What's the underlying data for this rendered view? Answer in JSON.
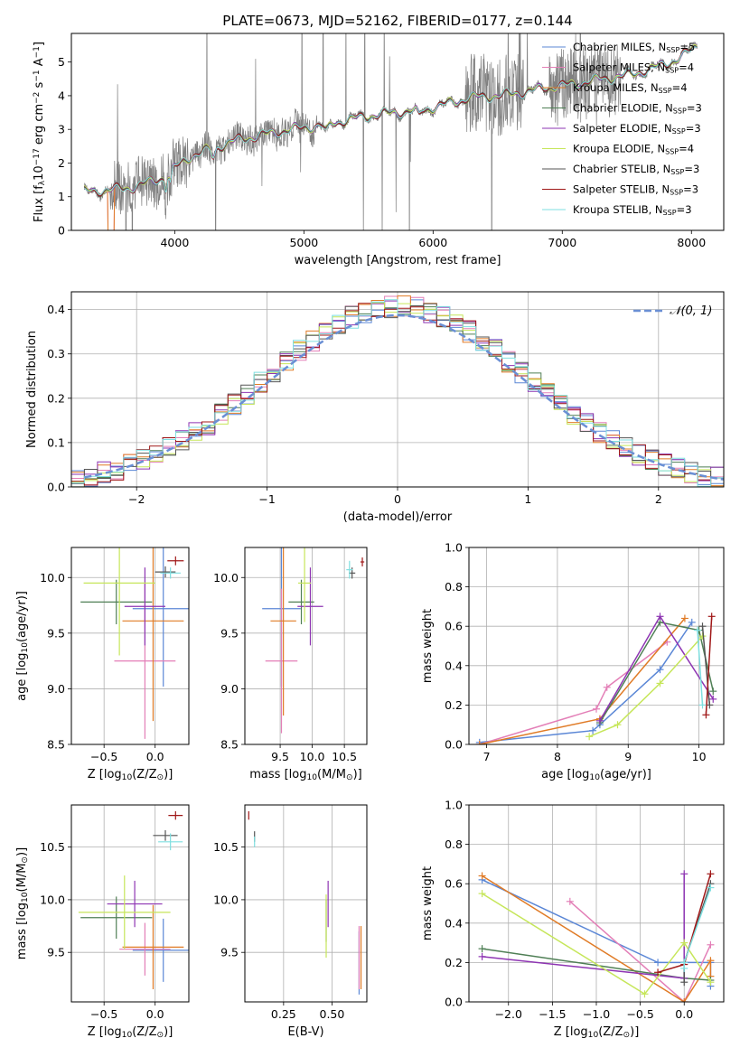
{
  "figure_title": "PLATE=0673, MJD=52162, FIBERID=0177, z=0.144",
  "colors": {
    "chabrier_miles": "#5b87d6",
    "salpeter_miles": "#e37fb7",
    "kroupa_miles": "#e07b26",
    "chabrier_elodie": "#4f7f55",
    "salpeter_elodie": "#8e35b3",
    "kroupa_elodie": "#c6e65a",
    "chabrier_stelib": "#555555",
    "salpeter_stelib": "#a01818",
    "kroupa_stelib": "#7fdfe0",
    "data": "#808080",
    "normal": "#6a8fd4"
  },
  "chart_data": [
    {
      "id": "spectrum",
      "type": "line",
      "xlabel": "wavelength [Angstrom, rest frame]",
      "ylabel_parts": [
        "Flux [f",
        "λ",
        "10",
        "−17",
        " erg cm",
        "−2",
        " s",
        "−1",
        " A",
        "−1",
        "]"
      ],
      "xlim": [
        3200,
        8250
      ],
      "ylim": [
        0,
        5.85
      ],
      "xticks": [
        4000,
        5000,
        6000,
        7000,
        8000
      ],
      "yticks": [
        0,
        1,
        2,
        3,
        4,
        5
      ],
      "grid": false,
      "legend_position": "top-right",
      "legend": [
        [
          "Chabrier MILES, N",
          "SSP",
          "=5"
        ],
        [
          "Salpeter MILES, N",
          "SSP",
          "=4"
        ],
        [
          "Kroupa MILES, N",
          "SSP",
          "=4"
        ],
        [
          "Chabrier ELODIE, N",
          "SSP",
          "=3"
        ],
        [
          "Salpeter ELODIE, N",
          "SSP",
          "=3"
        ],
        [
          "Kroupa ELODIE, N",
          "SSP",
          "=4"
        ],
        [
          "Chabrier STELIB, N",
          "SSP",
          "=3"
        ],
        [
          "Salpeter STELIB, N",
          "SSP",
          "=3"
        ],
        [
          "Kroupa STELIB, N",
          "SSP",
          "=3"
        ]
      ],
      "continuum": {
        "x": [
          3300,
          3500,
          3700,
          3900,
          4100,
          4300,
          4500,
          4700,
          4900,
          5100,
          5300,
          5500,
          5700,
          5900,
          6100,
          6300,
          6500,
          6700,
          6900,
          7100,
          7300,
          7500,
          7700,
          7900,
          8050
        ],
        "y": [
          1.15,
          1.2,
          1.3,
          1.55,
          2.15,
          2.45,
          2.7,
          2.85,
          3.0,
          3.1,
          3.25,
          3.4,
          3.5,
          3.55,
          3.75,
          3.95,
          4.0,
          4.1,
          4.25,
          4.35,
          4.5,
          4.6,
          4.8,
          5.1,
          5.5
        ]
      }
    },
    {
      "id": "residuals",
      "type": "line",
      "xlabel": "(data-model)/error",
      "ylabel": "Normed distribution",
      "xlim": [
        -2.5,
        2.5
      ],
      "ylim": [
        0,
        0.44
      ],
      "xticks": [
        -2,
        -1,
        0,
        1,
        2
      ],
      "yticks": [
        0.0,
        0.1,
        0.2,
        0.3,
        0.4
      ],
      "grid": true,
      "legend_position": "top-right",
      "legend": [
        "𝒩(0, 1)"
      ]
    },
    {
      "id": "z-age",
      "type": "scatter",
      "xlabel_parts": [
        "Z [log",
        "10",
        "(Z/Z",
        "⊙",
        ")]"
      ],
      "ylabel_parts": [
        "age  [log",
        "10",
        "(age/yr)]"
      ],
      "xlim": [
        -0.82,
        0.33
      ],
      "ylim": [
        8.5,
        10.27
      ],
      "xticks": [
        -0.5,
        0.0
      ],
      "yticks": [
        8.5,
        9.0,
        9.5,
        10.0
      ],
      "grid": true,
      "points": [
        {
          "c": "chabrier_miles",
          "x": 0.08,
          "y": 9.72,
          "xe": 0.3,
          "ye": 0.7
        },
        {
          "c": "salpeter_miles",
          "x": -0.1,
          "y": 9.25,
          "xe": 0.3,
          "ye": 0.7
        },
        {
          "c": "kroupa_miles",
          "x": -0.02,
          "y": 9.61,
          "xe": 0.3,
          "ye": 0.9
        },
        {
          "c": "chabrier_elodie",
          "x": -0.38,
          "y": 9.78,
          "xe": 0.35,
          "ye": 0.2
        },
        {
          "c": "salpeter_elodie",
          "x": -0.1,
          "y": 9.74,
          "xe": 0.2,
          "ye": 0.35
        },
        {
          "c": "kroupa_elodie",
          "x": -0.35,
          "y": 9.95,
          "xe": 0.35,
          "ye": 0.65
        },
        {
          "c": "chabrier_stelib",
          "x": 0.1,
          "y": 10.05,
          "xe": 0.1,
          "ye": 0.05
        },
        {
          "c": "salpeter_stelib",
          "x": 0.2,
          "y": 10.15,
          "xe": 0.08,
          "ye": 0.04
        },
        {
          "c": "kroupa_stelib",
          "x": 0.15,
          "y": 10.04,
          "xe": 0.1,
          "ye": 0.05
        }
      ]
    },
    {
      "id": "mass-age",
      "type": "scatter",
      "xlabel_parts": [
        "mass [log",
        "10",
        "(M/M",
        "⊙",
        ")]"
      ],
      "ylabel_parts": [
        "age  [log",
        "10",
        "(age/yr)]"
      ],
      "xlim": [
        8.95,
        10.85
      ],
      "ylim": [
        8.5,
        10.27
      ],
      "xticks": [
        9.5,
        10.0,
        10.5
      ],
      "yticks": [
        8.5,
        9.0,
        9.5,
        10.0
      ],
      "grid": true,
      "points": [
        {
          "c": "chabrier_miles",
          "x": 9.52,
          "y": 9.72,
          "xe": 0.3,
          "ye": 0.7
        },
        {
          "c": "salpeter_miles",
          "x": 9.52,
          "y": 9.25,
          "xe": 0.25,
          "ye": 0.65
        },
        {
          "c": "kroupa_miles",
          "x": 9.55,
          "y": 9.61,
          "xe": 0.2,
          "ye": 0.85
        },
        {
          "c": "chabrier_elodie",
          "x": 9.83,
          "y": 9.78,
          "xe": 0.2,
          "ye": 0.2
        },
        {
          "c": "salpeter_elodie",
          "x": 9.97,
          "y": 9.74,
          "xe": 0.2,
          "ye": 0.35
        },
        {
          "c": "kroupa_elodie",
          "x": 9.88,
          "y": 9.95,
          "xe": 0.1,
          "ye": 0.35
        },
        {
          "c": "chabrier_stelib",
          "x": 10.62,
          "y": 10.04,
          "xe": 0.05,
          "ye": 0.05
        },
        {
          "c": "salpeter_stelib",
          "x": 10.78,
          "y": 10.14,
          "xe": 0.03,
          "ye": 0.04
        },
        {
          "c": "kroupa_stelib",
          "x": 10.58,
          "y": 10.07,
          "xe": 0.05,
          "ye": 0.08
        }
      ]
    },
    {
      "id": "weight-age",
      "type": "line",
      "xlabel_parts": [
        "age  [log",
        "10",
        "(age/yr)]"
      ],
      "ylabel": "mass weight",
      "xlim": [
        6.75,
        10.35
      ],
      "ylim": [
        0,
        1
      ],
      "xticks": [
        7,
        8,
        9,
        10
      ],
      "yticks": [
        0.0,
        0.2,
        0.4,
        0.6,
        0.8,
        1.0
      ],
      "grid": true,
      "series": [
        {
          "c": "chabrier_miles",
          "x": [
            6.9,
            8.5,
            8.6,
            9.45,
            9.9
          ],
          "y": [
            0.01,
            0.07,
            0.1,
            0.38,
            0.62
          ]
        },
        {
          "c": "salpeter_miles",
          "x": [
            6.9,
            8.55,
            8.7,
            9.55
          ],
          "y": [
            0.0,
            0.18,
            0.29,
            0.52
          ]
        },
        {
          "c": "kroupa_miles",
          "x": [
            6.9,
            8.6,
            9.8
          ],
          "y": [
            0.0,
            0.13,
            0.64
          ]
        },
        {
          "c": "chabrier_elodie",
          "x": [
            8.6,
            9.45,
            10.0,
            10.2
          ],
          "y": [
            0.11,
            0.62,
            0.58,
            0.27
          ]
        },
        {
          "c": "salpeter_elodie",
          "x": [
            8.6,
            9.45,
            10.2
          ],
          "y": [
            0.12,
            0.65,
            0.23
          ]
        },
        {
          "c": "kroupa_elodie",
          "x": [
            8.45,
            8.85,
            9.45,
            10.05
          ],
          "y": [
            0.04,
            0.1,
            0.31,
            0.55
          ]
        },
        {
          "c": "chabrier_stelib",
          "x": [
            10.05,
            10.15
          ],
          "y": [
            0.6,
            0.2
          ]
        },
        {
          "c": "salpeter_stelib",
          "x": [
            10.1,
            10.18
          ],
          "y": [
            0.15,
            0.65
          ]
        },
        {
          "c": "kroupa_stelib",
          "x": [
            9.98,
            10.05
          ],
          "y": [
            0.58,
            0.2
          ]
        }
      ]
    },
    {
      "id": "z-mass",
      "type": "scatter",
      "xlabel_parts": [
        "Z [log",
        "10",
        "(Z/Z",
        "⊙",
        ")]"
      ],
      "ylabel_parts": [
        "mass [log",
        "10",
        "(M/M",
        "⊙",
        ")]"
      ],
      "xlim": [
        -0.82,
        0.33
      ],
      "ylim": [
        9.03,
        10.9
      ],
      "xticks": [
        -0.5,
        0.0
      ],
      "yticks": [
        9.5,
        10.0,
        10.5
      ],
      "grid": true,
      "points": [
        {
          "c": "chabrier_miles",
          "x": 0.08,
          "y": 9.52,
          "xe": 0.3,
          "ye": 0.3
        },
        {
          "c": "salpeter_miles",
          "x": -0.1,
          "y": 9.53,
          "xe": 0.25,
          "ye": 0.25
        },
        {
          "c": "kroupa_miles",
          "x": -0.02,
          "y": 9.55,
          "xe": 0.3,
          "ye": 0.4
        },
        {
          "c": "chabrier_elodie",
          "x": -0.38,
          "y": 9.83,
          "xe": 0.35,
          "ye": 0.2
        },
        {
          "c": "salpeter_elodie",
          "x": -0.2,
          "y": 9.96,
          "xe": 0.27,
          "ye": 0.22
        },
        {
          "c": "kroupa_elodie",
          "x": -0.3,
          "y": 9.88,
          "xe": 0.45,
          "ye": 0.35
        },
        {
          "c": "chabrier_stelib",
          "x": 0.1,
          "y": 10.61,
          "xe": 0.12,
          "ye": 0.05
        },
        {
          "c": "salpeter_stelib",
          "x": 0.2,
          "y": 10.8,
          "xe": 0.07,
          "ye": 0.04
        },
        {
          "c": "kroupa_stelib",
          "x": 0.15,
          "y": 10.55,
          "xe": 0.12,
          "ye": 0.08
        }
      ]
    },
    {
      "id": "ebv-mass",
      "type": "scatter",
      "xlabel": "E(B-V)",
      "xlim": [
        0.05,
        0.68
      ],
      "ylim": [
        9.03,
        10.9
      ],
      "xticks": [
        0.25,
        0.5
      ],
      "yticks": [
        9.5,
        10.0,
        10.5
      ],
      "grid": true,
      "points": [
        {
          "c": "chabrier_miles",
          "x": 0.64,
          "y": 9.4,
          "xe": 0,
          "ye": 0.3
        },
        {
          "c": "salpeter_miles",
          "x": 0.64,
          "y": 9.45,
          "xe": 0,
          "ye": 0.3
        },
        {
          "c": "kroupa_miles",
          "x": 0.65,
          "y": 9.45,
          "xe": 0,
          "ye": 0.3
        },
        {
          "c": "chabrier_elodie",
          "x": 0.47,
          "y": 9.8,
          "xe": 0,
          "ye": 0.2
        },
        {
          "c": "salpeter_elodie",
          "x": 0.48,
          "y": 9.96,
          "xe": 0,
          "ye": 0.22
        },
        {
          "c": "kroupa_elodie",
          "x": 0.47,
          "y": 9.75,
          "xe": 0,
          "ye": 0.3
        },
        {
          "c": "chabrier_stelib",
          "x": 0.1,
          "y": 10.6,
          "xe": 0,
          "ye": 0.05
        },
        {
          "c": "salpeter_stelib",
          "x": 0.07,
          "y": 10.8,
          "xe": 0,
          "ye": 0.04
        },
        {
          "c": "kroupa_stelib",
          "x": 0.1,
          "y": 10.55,
          "xe": 0,
          "ye": 0.05
        }
      ]
    },
    {
      "id": "weight-z",
      "type": "line",
      "xlabel_parts": [
        "Z [log",
        "10",
        "(Z/Z",
        "⊙",
        ")]"
      ],
      "ylabel": "mass weight",
      "xlim": [
        -2.45,
        0.45
      ],
      "ylim": [
        0,
        1
      ],
      "xticks": [
        -2.0,
        -1.5,
        -1.0,
        -0.5,
        0.0
      ],
      "yticks": [
        0.0,
        0.2,
        0.4,
        0.6,
        0.8,
        1.0
      ],
      "grid": true,
      "series": [
        {
          "c": "chabrier_miles",
          "x": [
            -2.3,
            -0.3,
            0.0,
            0.3,
            0.3
          ],
          "y": [
            0.62,
            0.2,
            0.2,
            0.2,
            0.08
          ]
        },
        {
          "c": "salpeter_miles",
          "x": [
            -1.3,
            0.0,
            0.3
          ],
          "y": [
            0.51,
            0.0,
            0.29
          ]
        },
        {
          "c": "kroupa_miles",
          "x": [
            -2.3,
            0.0,
            0.3,
            0.3
          ],
          "y": [
            0.64,
            0.0,
            0.21,
            0.13
          ]
        },
        {
          "c": "chabrier_elodie",
          "x": [
            -2.3,
            0.0,
            0.3
          ],
          "y": [
            0.27,
            0.12,
            0.11
          ]
        },
        {
          "c": "salpeter_elodie",
          "x": [
            -2.3,
            0.0,
            0.0
          ],
          "y": [
            0.23,
            0.12,
            0.65
          ]
        },
        {
          "c": "kroupa_elodie",
          "x": [
            -2.3,
            -0.45,
            0.0,
            0.3
          ],
          "y": [
            0.55,
            0.04,
            0.3,
            0.1
          ]
        },
        {
          "c": "chabrier_stelib",
          "x": [
            0.0,
            0.0,
            0.3
          ],
          "y": [
            0.1,
            0.2,
            0.6
          ]
        },
        {
          "c": "salpeter_stelib",
          "x": [
            -0.3,
            0.0,
            0.3
          ],
          "y": [
            0.15,
            0.19,
            0.65
          ]
        },
        {
          "c": "kroupa_stelib",
          "x": [
            0.0,
            0.0,
            0.3
          ],
          "y": [
            0.17,
            0.2,
            0.58
          ]
        }
      ]
    }
  ]
}
